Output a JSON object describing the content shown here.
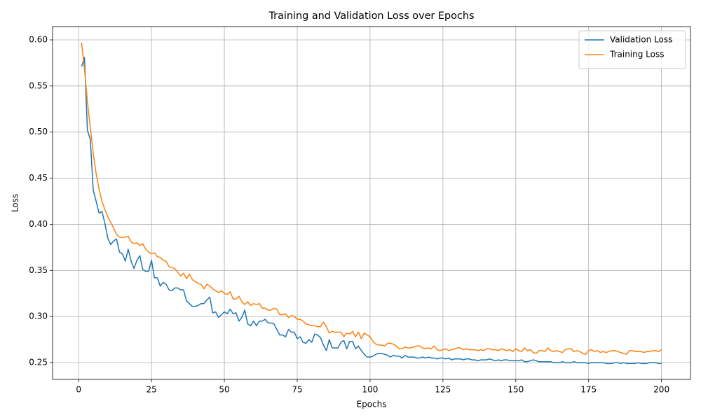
{
  "chart_data": {
    "type": "line",
    "title": "Training and Validation Loss over Epochs",
    "x_label": "Epochs",
    "y_label": "Loss",
    "x": [
      1,
      2,
      3,
      4,
      5,
      6,
      7,
      8,
      9,
      10,
      11,
      12,
      13,
      14,
      15,
      16,
      17,
      18,
      19,
      20,
      21,
      22,
      23,
      24,
      25,
      26,
      27,
      28,
      29,
      30,
      31,
      32,
      33,
      34,
      35,
      36,
      37,
      38,
      39,
      40,
      41,
      42,
      43,
      44,
      45,
      46,
      47,
      48,
      49,
      50,
      51,
      52,
      53,
      54,
      55,
      56,
      57,
      58,
      59,
      60,
      61,
      62,
      63,
      64,
      65,
      66,
      67,
      68,
      69,
      70,
      71,
      72,
      73,
      74,
      75,
      76,
      77,
      78,
      79,
      80,
      81,
      82,
      83,
      84,
      85,
      86,
      87,
      88,
      89,
      90,
      91,
      92,
      93,
      94,
      95,
      96,
      97,
      98,
      99,
      100,
      101,
      102,
      103,
      104,
      105,
      106,
      107,
      108,
      109,
      110,
      111,
      112,
      113,
      114,
      115,
      116,
      117,
      118,
      119,
      120,
      121,
      122,
      123,
      124,
      125,
      126,
      127,
      128,
      129,
      130,
      131,
      132,
      133,
      134,
      135,
      136,
      137,
      138,
      139,
      140,
      141,
      142,
      143,
      144,
      145,
      146,
      147,
      148,
      149,
      150,
      151,
      152,
      153,
      154,
      155,
      156,
      157,
      158,
      159,
      160,
      161,
      162,
      163,
      164,
      165,
      166,
      167,
      168,
      169,
      170,
      171,
      172,
      173,
      174,
      175,
      176,
      177,
      178,
      179,
      180,
      181,
      182,
      183,
      184,
      185,
      186,
      187,
      188,
      189,
      190,
      191,
      192,
      193,
      194,
      195,
      196,
      197,
      198,
      199,
      200
    ],
    "series": [
      {
        "name": "Validation Loss",
        "color": "#1f77b4",
        "values": [
          0.571,
          0.581,
          0.502,
          0.492,
          0.437,
          0.425,
          0.412,
          0.414,
          0.401,
          0.385,
          0.378,
          0.382,
          0.384,
          0.37,
          0.368,
          0.36,
          0.373,
          0.36,
          0.352,
          0.361,
          0.366,
          0.351,
          0.349,
          0.349,
          0.361,
          0.342,
          0.342,
          0.333,
          0.337,
          0.335,
          0.329,
          0.328,
          0.331,
          0.331,
          0.329,
          0.329,
          0.317,
          0.314,
          0.311,
          0.311,
          0.312,
          0.314,
          0.314,
          0.318,
          0.321,
          0.304,
          0.305,
          0.299,
          0.302,
          0.305,
          0.303,
          0.308,
          0.303,
          0.304,
          0.295,
          0.299,
          0.307,
          0.292,
          0.29,
          0.295,
          0.29,
          0.295,
          0.295,
          0.297,
          0.293,
          0.293,
          0.292,
          0.286,
          0.28,
          0.28,
          0.278,
          0.286,
          0.283,
          0.283,
          0.276,
          0.278,
          0.272,
          0.271,
          0.275,
          0.272,
          0.281,
          0.28,
          0.277,
          0.269,
          0.263,
          0.275,
          0.266,
          0.266,
          0.266,
          0.272,
          0.274,
          0.265,
          0.273,
          0.273,
          0.265,
          0.268,
          0.263,
          0.259,
          0.256,
          0.256,
          0.257,
          0.259,
          0.26,
          0.26,
          0.259,
          0.258,
          0.256,
          0.258,
          0.257,
          0.257,
          0.255,
          0.258,
          0.256,
          0.256,
          0.256,
          0.255,
          0.255,
          0.256,
          0.255,
          0.256,
          0.255,
          0.255,
          0.254,
          0.255,
          0.255,
          0.254,
          0.255,
          0.253,
          0.254,
          0.254,
          0.254,
          0.253,
          0.254,
          0.254,
          0.253,
          0.253,
          0.252,
          0.253,
          0.253,
          0.253,
          0.254,
          0.253,
          0.252,
          0.253,
          0.252,
          0.253,
          0.253,
          0.252,
          0.252,
          0.252,
          0.252,
          0.253,
          0.251,
          0.251,
          0.252,
          0.253,
          0.252,
          0.251,
          0.251,
          0.251,
          0.251,
          0.251,
          0.25,
          0.25,
          0.25,
          0.251,
          0.25,
          0.25,
          0.25,
          0.251,
          0.25,
          0.25,
          0.25,
          0.25,
          0.249,
          0.25,
          0.25,
          0.25,
          0.25,
          0.25,
          0.249,
          0.249,
          0.249,
          0.25,
          0.25,
          0.249,
          0.25,
          0.249,
          0.249,
          0.249,
          0.249,
          0.25,
          0.249,
          0.249,
          0.249,
          0.25,
          0.25,
          0.25,
          0.249,
          0.249
        ]
      },
      {
        "name": "Training Loss",
        "color": "#ff7f0e",
        "values": [
          0.597,
          0.568,
          0.533,
          0.505,
          0.477,
          0.455,
          0.438,
          0.425,
          0.416,
          0.408,
          0.402,
          0.396,
          0.389,
          0.386,
          0.386,
          0.386,
          0.387,
          0.381,
          0.379,
          0.38,
          0.377,
          0.379,
          0.373,
          0.37,
          0.368,
          0.369,
          0.365,
          0.364,
          0.361,
          0.36,
          0.354,
          0.353,
          0.352,
          0.348,
          0.344,
          0.347,
          0.341,
          0.346,
          0.34,
          0.338,
          0.336,
          0.335,
          0.33,
          0.335,
          0.333,
          0.33,
          0.328,
          0.326,
          0.328,
          0.325,
          0.324,
          0.327,
          0.319,
          0.319,
          0.322,
          0.316,
          0.313,
          0.316,
          0.312,
          0.314,
          0.313,
          0.314,
          0.309,
          0.309,
          0.307,
          0.307,
          0.309,
          0.308,
          0.302,
          0.302,
          0.303,
          0.299,
          0.301,
          0.3,
          0.297,
          0.297,
          0.295,
          0.292,
          0.291,
          0.29,
          0.29,
          0.289,
          0.289,
          0.294,
          0.289,
          0.282,
          0.284,
          0.283,
          0.283,
          0.283,
          0.278,
          0.282,
          0.281,
          0.284,
          0.278,
          0.283,
          0.276,
          0.282,
          0.28,
          0.278,
          0.273,
          0.27,
          0.269,
          0.269,
          0.268,
          0.271,
          0.271,
          0.27,
          0.268,
          0.265,
          0.265,
          0.267,
          0.266,
          0.266,
          0.267,
          0.268,
          0.268,
          0.266,
          0.265,
          0.266,
          0.265,
          0.268,
          0.264,
          0.263,
          0.264,
          0.265,
          0.263,
          0.264,
          0.265,
          0.266,
          0.266,
          0.264,
          0.265,
          0.264,
          0.264,
          0.264,
          0.263,
          0.264,
          0.263,
          0.265,
          0.265,
          0.264,
          0.264,
          0.263,
          0.265,
          0.264,
          0.263,
          0.264,
          0.262,
          0.265,
          0.263,
          0.262,
          0.266,
          0.263,
          0.264,
          0.261,
          0.26,
          0.263,
          0.263,
          0.262,
          0.266,
          0.263,
          0.262,
          0.263,
          0.262,
          0.261,
          0.264,
          0.265,
          0.265,
          0.262,
          0.263,
          0.262,
          0.26,
          0.259,
          0.263,
          0.264,
          0.262,
          0.263,
          0.261,
          0.262,
          0.261,
          0.262,
          0.263,
          0.263,
          0.262,
          0.261,
          0.26,
          0.259,
          0.263,
          0.263,
          0.262,
          0.262,
          0.262,
          0.261,
          0.262,
          0.262,
          0.263,
          0.263,
          0.262,
          0.264
        ]
      }
    ],
    "xlim": [
      -8.95,
      209.95
    ],
    "ylim": [
      0.2318,
      0.6144
    ],
    "xticks": [
      0,
      25,
      50,
      75,
      100,
      125,
      150,
      175,
      200
    ],
    "yticks": [
      0.25,
      {
        "value": 0.3,
        "label": "0.30"
      },
      0.35,
      {
        "value": 0.4,
        "label": "0.40"
      },
      0.45,
      {
        "value": 0.5,
        "label": "0.50"
      },
      0.55,
      {
        "value": 0.6,
        "label": "0.60"
      }
    ],
    "grid": true,
    "legend": "upper-right"
  }
}
